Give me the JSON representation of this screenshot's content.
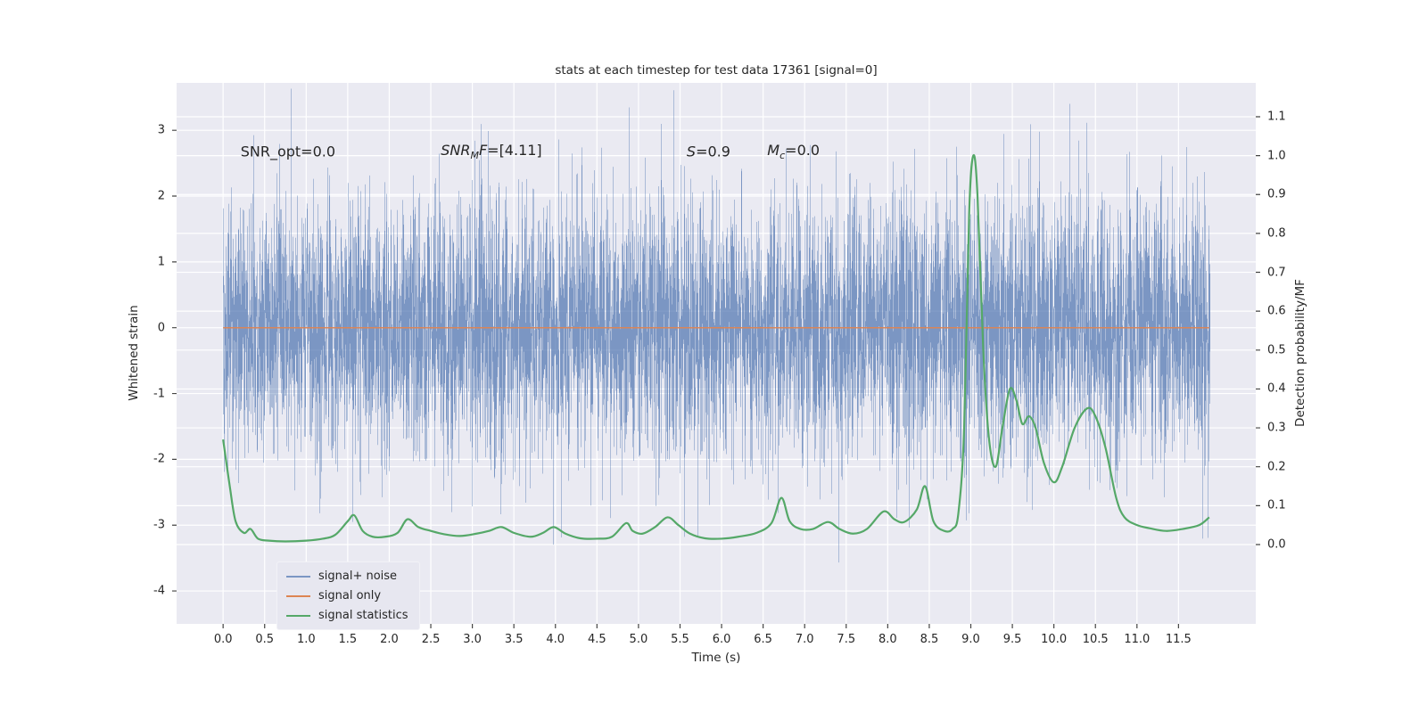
{
  "figure": {
    "title": "stats at each timestep for test data 17361 [signal=0]",
    "xlabel": "Time (s)",
    "ylabel_left": "Whitened strain",
    "ylabel_right": "Detection probability/MF"
  },
  "colors": {
    "figure_bg": "#ffffff",
    "axes_bg": "#eaeaf2",
    "grid": "#ffffff",
    "text": "#262626",
    "tick": "#444444",
    "blue": "#4c72b0",
    "orange": "#dd8452",
    "green": "#55a868"
  },
  "legend": {
    "items": [
      {
        "label": "signal+ noise",
        "color": "#7b96c4"
      },
      {
        "label": "signal only",
        "color": "#dd8452"
      },
      {
        "label": "signal statistics",
        "color": "#55a868"
      }
    ]
  },
  "chart_data": {
    "type": "line",
    "title": "stats at each timestep for test data 17361 [signal=0]",
    "xlabel": "Time (s)",
    "ylabel_left": "Whitened strain",
    "ylabel_right": "Detection probability/MF",
    "xlim": [
      -0.56,
      12.43
    ],
    "ylim_left": [
      -4.5,
      3.72
    ],
    "ylim_right": [
      -0.204,
      1.187
    ],
    "grid": "both",
    "x_tick_labels": [
      "0.0",
      "0.5",
      "1.0",
      "1.5",
      "2.0",
      "2.5",
      "3.0",
      "3.5",
      "4.0",
      "4.5",
      "5.0",
      "5.5",
      "6.0",
      "6.5",
      "7.0",
      "7.5",
      "8.0",
      "8.5",
      "9.0",
      "9.5",
      "10.0",
      "10.5",
      "11.0",
      "11.5"
    ],
    "y_tick_labels_left": [
      "-4",
      "-3",
      "-2",
      "-1",
      "0",
      "1",
      "2",
      "3"
    ],
    "y_tick_labels_right": [
      "0.0",
      "0.1",
      "0.2",
      "0.3",
      "0.4",
      "0.5",
      "0.6",
      "0.7",
      "0.8",
      "0.9",
      "1.0",
      "1.1"
    ],
    "annotations": {
      "snr_opt": {
        "label": "SNR_opt=0.0",
        "x": 0.21,
        "y": 2.68
      },
      "snr_mf": {
        "var": "SNR",
        "sub": "M",
        "var2": "F",
        "value": "=[4.11]",
        "x": 2.62,
        "y": 2.68
      },
      "s": {
        "var": "S",
        "value": "=0.9",
        "x": 5.58,
        "y": 2.68
      },
      "mc": {
        "var": "M",
        "sub": "c",
        "value": "=0.0",
        "x": 6.55,
        "y": 2.68
      }
    },
    "series": [
      {
        "name": "signal+ noise",
        "type": "noise_band",
        "axis": "left",
        "color": "#4c72b0",
        "t_range": [
          0.0,
          11.87
        ],
        "sigma": 1.0,
        "samples_per_column": 6,
        "seed": 17361,
        "approx_min": -4.1,
        "approx_max": 3.35
      },
      {
        "name": "signal only",
        "type": "hline",
        "axis": "left",
        "color": "#dd8452",
        "y": 0.0,
        "t_range": [
          0.0,
          11.87
        ]
      },
      {
        "name": "signal statistics",
        "type": "curve",
        "axis": "right",
        "color": "#55a868",
        "points": [
          [
            0.0,
            0.27
          ],
          [
            0.08,
            0.15
          ],
          [
            0.15,
            0.06
          ],
          [
            0.25,
            0.03
          ],
          [
            0.33,
            0.04
          ],
          [
            0.42,
            0.015
          ],
          [
            0.55,
            0.01
          ],
          [
            0.75,
            0.008
          ],
          [
            1.0,
            0.01
          ],
          [
            1.2,
            0.015
          ],
          [
            1.35,
            0.025
          ],
          [
            1.5,
            0.06
          ],
          [
            1.58,
            0.075
          ],
          [
            1.68,
            0.035
          ],
          [
            1.8,
            0.02
          ],
          [
            1.95,
            0.02
          ],
          [
            2.1,
            0.03
          ],
          [
            2.22,
            0.065
          ],
          [
            2.35,
            0.045
          ],
          [
            2.5,
            0.035
          ],
          [
            2.65,
            0.027
          ],
          [
            2.85,
            0.022
          ],
          [
            3.05,
            0.028
          ],
          [
            3.2,
            0.035
          ],
          [
            3.35,
            0.045
          ],
          [
            3.5,
            0.03
          ],
          [
            3.7,
            0.02
          ],
          [
            3.85,
            0.03
          ],
          [
            3.98,
            0.045
          ],
          [
            4.12,
            0.028
          ],
          [
            4.3,
            0.016
          ],
          [
            4.5,
            0.015
          ],
          [
            4.68,
            0.02
          ],
          [
            4.85,
            0.055
          ],
          [
            4.93,
            0.035
          ],
          [
            5.05,
            0.028
          ],
          [
            5.2,
            0.045
          ],
          [
            5.35,
            0.07
          ],
          [
            5.48,
            0.05
          ],
          [
            5.62,
            0.028
          ],
          [
            5.8,
            0.016
          ],
          [
            6.0,
            0.015
          ],
          [
            6.2,
            0.02
          ],
          [
            6.42,
            0.03
          ],
          [
            6.6,
            0.055
          ],
          [
            6.72,
            0.12
          ],
          [
            6.82,
            0.06
          ],
          [
            6.95,
            0.04
          ],
          [
            7.1,
            0.04
          ],
          [
            7.28,
            0.058
          ],
          [
            7.42,
            0.04
          ],
          [
            7.58,
            0.028
          ],
          [
            7.75,
            0.04
          ],
          [
            7.95,
            0.085
          ],
          [
            8.08,
            0.065
          ],
          [
            8.2,
            0.058
          ],
          [
            8.35,
            0.09
          ],
          [
            8.45,
            0.15
          ],
          [
            8.55,
            0.06
          ],
          [
            8.68,
            0.035
          ],
          [
            8.78,
            0.04
          ],
          [
            8.85,
            0.08
          ],
          [
            8.92,
            0.3
          ],
          [
            8.98,
            0.85
          ],
          [
            9.03,
            1.0
          ],
          [
            9.08,
            0.9
          ],
          [
            9.15,
            0.5
          ],
          [
            9.22,
            0.27
          ],
          [
            9.3,
            0.2
          ],
          [
            9.38,
            0.3
          ],
          [
            9.47,
            0.4
          ],
          [
            9.55,
            0.37
          ],
          [
            9.62,
            0.31
          ],
          [
            9.7,
            0.33
          ],
          [
            9.78,
            0.3
          ],
          [
            9.88,
            0.21
          ],
          [
            10.0,
            0.16
          ],
          [
            10.1,
            0.2
          ],
          [
            10.25,
            0.3
          ],
          [
            10.4,
            0.35
          ],
          [
            10.5,
            0.33
          ],
          [
            10.62,
            0.25
          ],
          [
            10.75,
            0.12
          ],
          [
            10.85,
            0.07
          ],
          [
            11.0,
            0.05
          ],
          [
            11.15,
            0.042
          ],
          [
            11.35,
            0.035
          ],
          [
            11.55,
            0.04
          ],
          [
            11.75,
            0.05
          ],
          [
            11.87,
            0.07
          ]
        ]
      }
    ]
  }
}
